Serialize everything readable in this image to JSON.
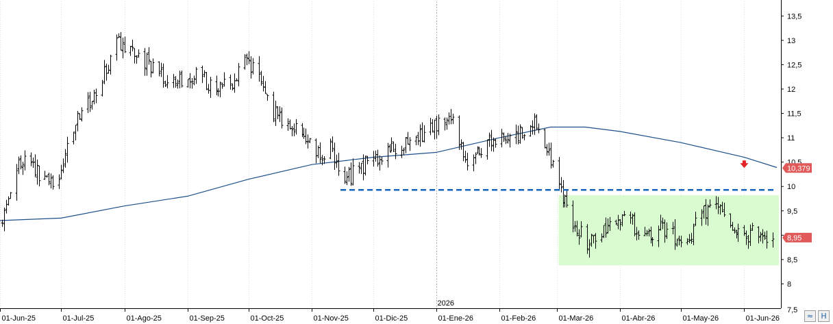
{
  "chart_data": {
    "type": "ohlc",
    "x_axis": {
      "labels": [
        "01-Jun-25",
        "01-Jul-25",
        "01-Ago-25",
        "01-Sep-25",
        "01-Oct-25",
        "01-Nov-25",
        "01-Dic-25",
        "01-Ene-26",
        "01-Feb-26",
        "01-Mar-26",
        "01-Abr-26",
        "01-May-26",
        "01-Jun-26"
      ],
      "dates": [
        "2025-06-01",
        "2025-07-01",
        "2025-08-01",
        "2025-09-01",
        "2025-10-01",
        "2025-11-01",
        "2025-12-01",
        "2026-01-01",
        "2026-02-01",
        "2026-03-01",
        "2026-04-01",
        "2026-05-01",
        "2026-06-01"
      ],
      "year_marker": {
        "label": "2026",
        "date": "2026-01-01"
      },
      "range": [
        "2025-06-01",
        "2026-06-19"
      ]
    },
    "y_axis": {
      "ticks": [
        8,
        8.5,
        9,
        9.5,
        10,
        10.5,
        11,
        11.5,
        12,
        12.5,
        13,
        13.5
      ],
      "tick_labels": [
        "8",
        "8,5",
        "9",
        "9,5",
        "10",
        "10,5",
        "11",
        "11,5",
        "12",
        "12,5",
        "13",
        "13,5"
      ],
      "partial_bottom_label": "7,5",
      "range": [
        7.5,
        13.8
      ],
      "position": "right"
    },
    "price_path": [
      [
        "2025-06-02",
        9.25
      ],
      [
        "2025-06-09",
        10.4
      ],
      [
        "2025-06-16",
        10.5
      ],
      [
        "2025-06-23",
        10.1
      ],
      [
        "2025-06-30",
        10.2
      ],
      [
        "2025-07-07",
        11.2
      ],
      [
        "2025-07-14",
        11.7
      ],
      [
        "2025-07-21",
        12.2
      ],
      [
        "2025-07-28",
        13.0
      ],
      [
        "2025-08-04",
        12.8
      ],
      [
        "2025-08-11",
        12.6
      ],
      [
        "2025-08-18",
        12.3
      ],
      [
        "2025-08-25",
        12.1
      ],
      [
        "2025-09-01",
        12.3
      ],
      [
        "2025-09-08",
        12.2
      ],
      [
        "2025-09-15",
        12.0
      ],
      [
        "2025-09-22",
        12.1
      ],
      [
        "2025-09-29",
        12.6
      ],
      [
        "2025-10-06",
        12.2
      ],
      [
        "2025-10-13",
        11.5
      ],
      [
        "2025-10-20",
        11.3
      ],
      [
        "2025-10-27",
        11.1
      ],
      [
        "2025-11-03",
        10.6
      ],
      [
        "2025-11-10",
        10.8
      ],
      [
        "2025-11-17",
        10.1
      ],
      [
        "2025-11-24",
        10.4
      ],
      [
        "2025-12-01",
        10.55
      ],
      [
        "2025-12-08",
        10.8
      ],
      [
        "2025-12-15",
        10.85
      ],
      [
        "2025-12-22",
        11.0
      ],
      [
        "2026-01-01",
        11.3
      ],
      [
        "2026-01-08",
        11.5
      ],
      [
        "2026-01-15",
        10.5
      ],
      [
        "2026-01-22",
        10.8
      ],
      [
        "2026-01-29",
        10.95
      ],
      [
        "2026-02-05",
        11.0
      ],
      [
        "2026-02-12",
        11.1
      ],
      [
        "2026-02-19",
        11.3
      ],
      [
        "2026-02-26",
        10.5
      ],
      [
        "2026-03-02",
        10.0
      ],
      [
        "2026-03-09",
        9.3
      ],
      [
        "2026-03-16",
        8.8
      ],
      [
        "2026-03-23",
        9.1
      ],
      [
        "2026-03-30",
        9.4
      ],
      [
        "2026-04-06",
        9.3
      ],
      [
        "2026-04-13",
        8.9
      ],
      [
        "2026-04-20",
        9.2
      ],
      [
        "2026-04-27",
        9.0
      ],
      [
        "2026-05-04",
        8.9
      ],
      [
        "2026-05-11",
        9.4
      ],
      [
        "2026-05-18",
        9.7
      ],
      [
        "2026-05-25",
        9.1
      ],
      [
        "2026-06-01",
        8.95
      ],
      [
        "2026-06-08",
        9.1
      ],
      [
        "2026-06-15",
        8.95
      ]
    ],
    "moving_average": {
      "color": "#1b4f8a",
      "points": [
        [
          "2025-06-01",
          9.3
        ],
        [
          "2025-07-01",
          9.35
        ],
        [
          "2025-08-01",
          9.6
        ],
        [
          "2025-09-01",
          9.8
        ],
        [
          "2025-10-01",
          10.15
        ],
        [
          "2025-11-01",
          10.45
        ],
        [
          "2025-12-01",
          10.6
        ],
        [
          "2026-01-01",
          10.7
        ],
        [
          "2026-02-01",
          11.0
        ],
        [
          "2026-02-26",
          11.22
        ],
        [
          "2026-03-15",
          11.22
        ],
        [
          "2026-04-01",
          11.13
        ],
        [
          "2026-05-01",
          10.9
        ],
        [
          "2026-06-01",
          10.6
        ],
        [
          "2026-06-17",
          10.39
        ]
      ]
    },
    "support_line": {
      "value": 9.93,
      "from": "2025-11-15",
      "to": "2026-06-17",
      "color": "#1565c0",
      "style": "dashed"
    },
    "highlight_zone": {
      "from": "2026-03-02",
      "to": "2026-06-18",
      "y_low": 8.38,
      "y_high": 9.82,
      "color": "#d9fbd0"
    },
    "markers": [
      {
        "type": "down-arrow",
        "date": "2026-06-01",
        "value": 10.45,
        "color": "#e02424"
      }
    ],
    "price_tags": [
      {
        "label": "10,379",
        "value": 10.379,
        "color": "#e05a5a"
      },
      {
        "label": "8,95",
        "value": 8.95,
        "color": "#e05a5a"
      }
    ],
    "title": "",
    "xlabel": "",
    "ylabel": "",
    "grid": {
      "vertical": true,
      "horizontal": false
    }
  },
  "controls": {
    "corner_buttons": [
      {
        "icon": "zoom-fit-icon",
        "glyph": "≈"
      },
      {
        "icon": "save-icon",
        "glyph": "H"
      }
    ]
  }
}
